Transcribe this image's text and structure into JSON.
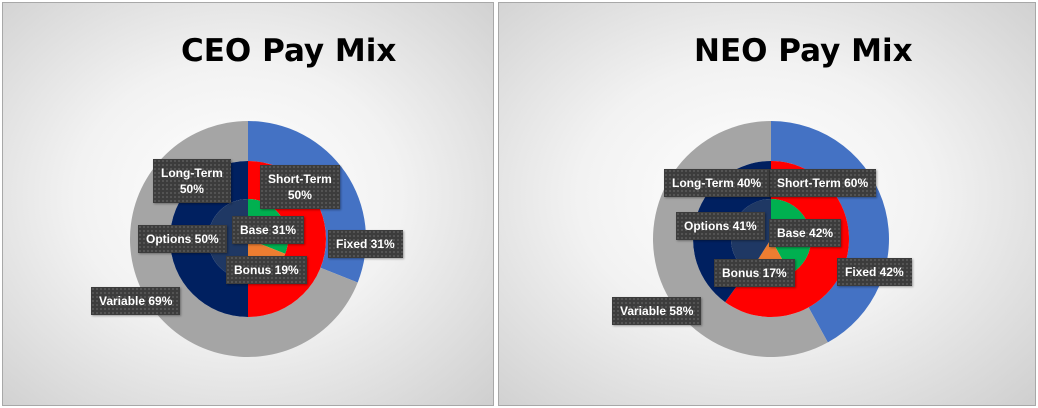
{
  "chart_data": [
    {
      "type": "pie",
      "title": "CEO Pay Mix",
      "rings": [
        {
          "name": "",
          "slices": [
            {
              "label": "Fixed 31%",
              "value": 31,
              "color": "#4472c4"
            },
            {
              "label": "Variable 69%",
              "value": 69,
              "color": "#a5a5a5"
            }
          ]
        },
        {
          "name": "",
          "slices": [
            {
              "label": "Short-Term",
              "label2": "50%",
              "value": 50,
              "color": "#ff0000"
            },
            {
              "label": "Long-Term",
              "label2": "50%",
              "value": 50,
              "color": "#002060"
            }
          ]
        },
        {
          "name": "",
          "slices": [
            {
              "label": "Base 31%",
              "value": 31,
              "color": "#00b050"
            },
            {
              "label": "Bonus 19%",
              "value": 19,
              "color": "#ed7d31"
            },
            {
              "label": "Options 50%",
              "value": 50,
              "color": "#1f3864"
            }
          ]
        }
      ]
    },
    {
      "type": "pie",
      "title": "NEO Pay Mix",
      "rings": [
        {
          "name": "",
          "slices": [
            {
              "label": "Fixed 42%",
              "value": 42,
              "color": "#4472c4"
            },
            {
              "label": "Variable 58%",
              "value": 58,
              "color": "#a5a5a5"
            }
          ]
        },
        {
          "name": "",
          "slices": [
            {
              "label": "Short-Term 60%",
              "value": 60,
              "color": "#ff0000"
            },
            {
              "label": "Long-Term 40%",
              "value": 40,
              "color": "#002060"
            }
          ]
        },
        {
          "name": "",
          "slices": [
            {
              "label": "Base 42%",
              "value": 42,
              "color": "#00b050"
            },
            {
              "label": "Bonus 17%",
              "value": 17,
              "color": "#ed7d31"
            },
            {
              "label": "Options 41%",
              "value": 41,
              "color": "#1f3864"
            }
          ]
        }
      ]
    }
  ]
}
